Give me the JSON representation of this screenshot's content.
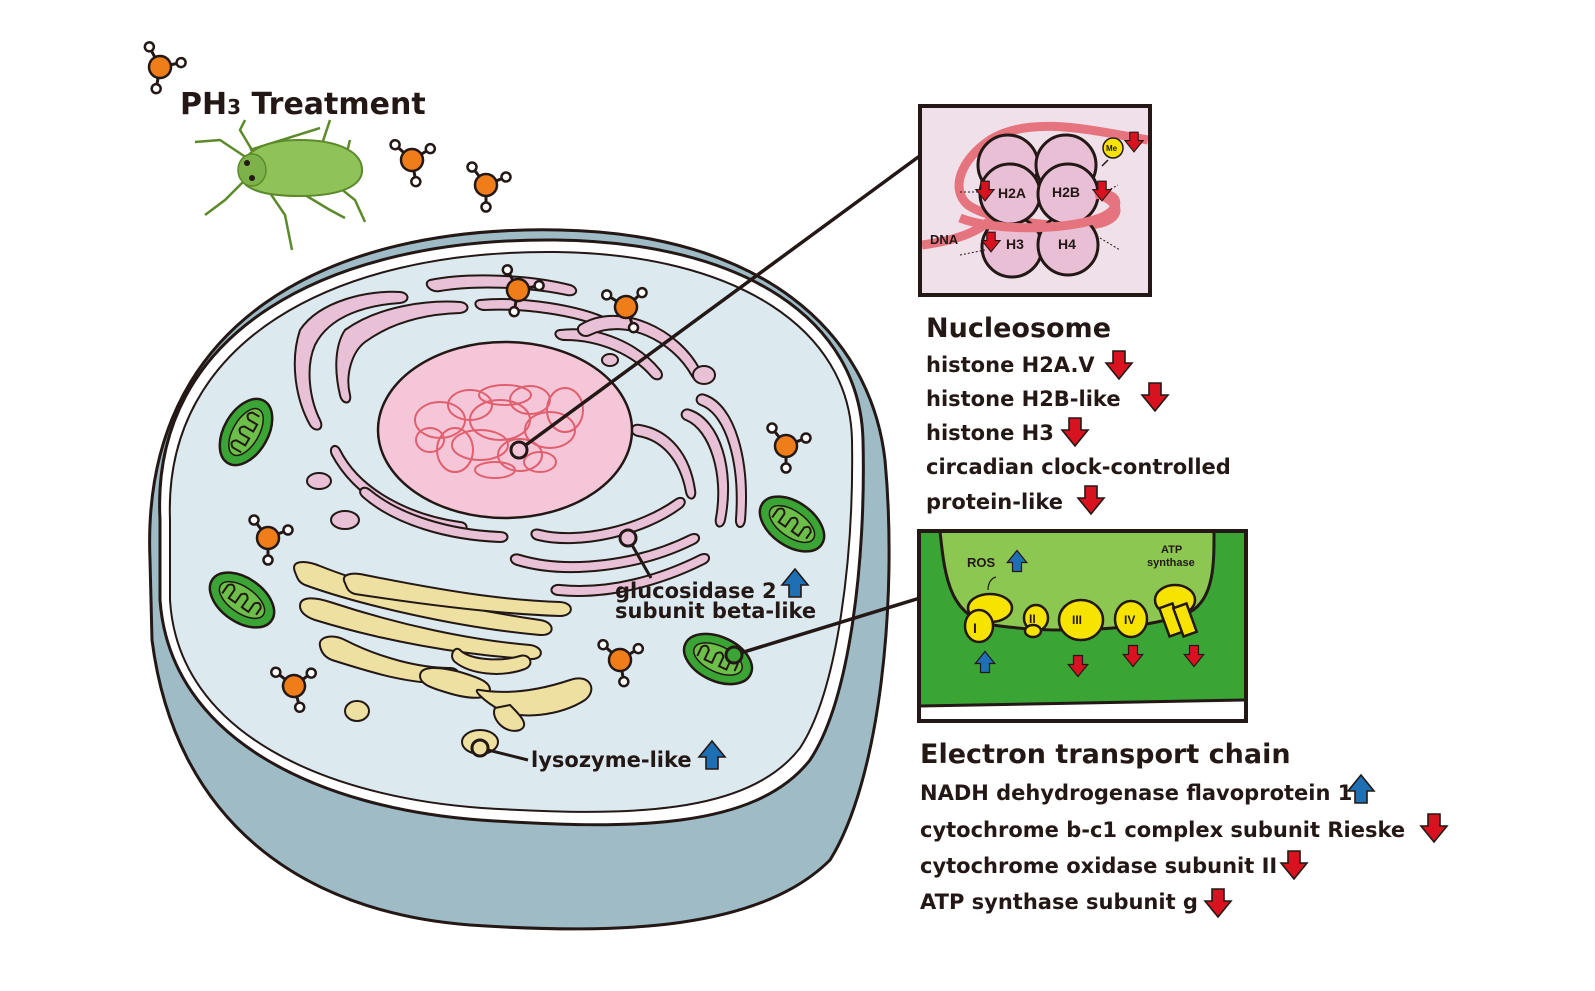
{
  "treatment": {
    "title_main": "PH",
    "title_sub": "3",
    "title_rest": " Treatment"
  },
  "cell_labels": {
    "glucosidase_line1": "glucosidase 2",
    "glucosidase_line2": "subunit beta-like",
    "lysozyme": "lysozyme-like"
  },
  "nucleosome_inset": {
    "histones": [
      "H2A",
      "H2B",
      "H3",
      "H4"
    ],
    "dna_label": "DNA",
    "methyl_label": "Me"
  },
  "nucleosome": {
    "heading": "Nucleosome",
    "items": [
      {
        "text": "histone H2A.V",
        "direction": "down"
      },
      {
        "text": "histone H2B-like",
        "direction": "down"
      },
      {
        "text": "histone H3",
        "direction": "down"
      },
      {
        "text": "circadian clock-controlled",
        "direction": ""
      },
      {
        "text": "protein-like",
        "direction": "down"
      }
    ]
  },
  "etc_inset": {
    "ros_label": "ROS",
    "atp_line1": "ATP",
    "atp_line2": "synthase",
    "complexes": [
      "I",
      "II",
      "III",
      "IV"
    ]
  },
  "electron_transport": {
    "heading": "Electron transport chain",
    "items": [
      {
        "text": "NADH dehydrogenase flavoprotein 1",
        "direction": "up"
      },
      {
        "text": "cytochrome b-c1 complex subunit Rieske",
        "direction": "down"
      },
      {
        "text": "cytochrome oxidase subunit II",
        "direction": "down"
      },
      {
        "text": "ATP synthase subunit g",
        "direction": "down"
      }
    ]
  },
  "colors": {
    "up_arrow": "#1f6fb5",
    "down_arrow": "#d9121f",
    "molecule_center": "#ef7d1a",
    "mitochondria": "#3aa535",
    "nucleus": "#f4c6d8",
    "cytoplasm": "#dce9ee",
    "cell_wall": "#9fbcc6",
    "golgi": "#eee0a0",
    "er": "#e8c1d6"
  }
}
